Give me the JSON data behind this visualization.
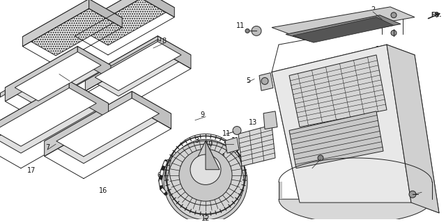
{
  "bg_color": "#ffffff",
  "fig_width": 6.4,
  "fig_height": 3.19,
  "dpi": 100,
  "diagram_code": "S6M4-B1710A",
  "line_color": "#222222",
  "lw": 0.7
}
